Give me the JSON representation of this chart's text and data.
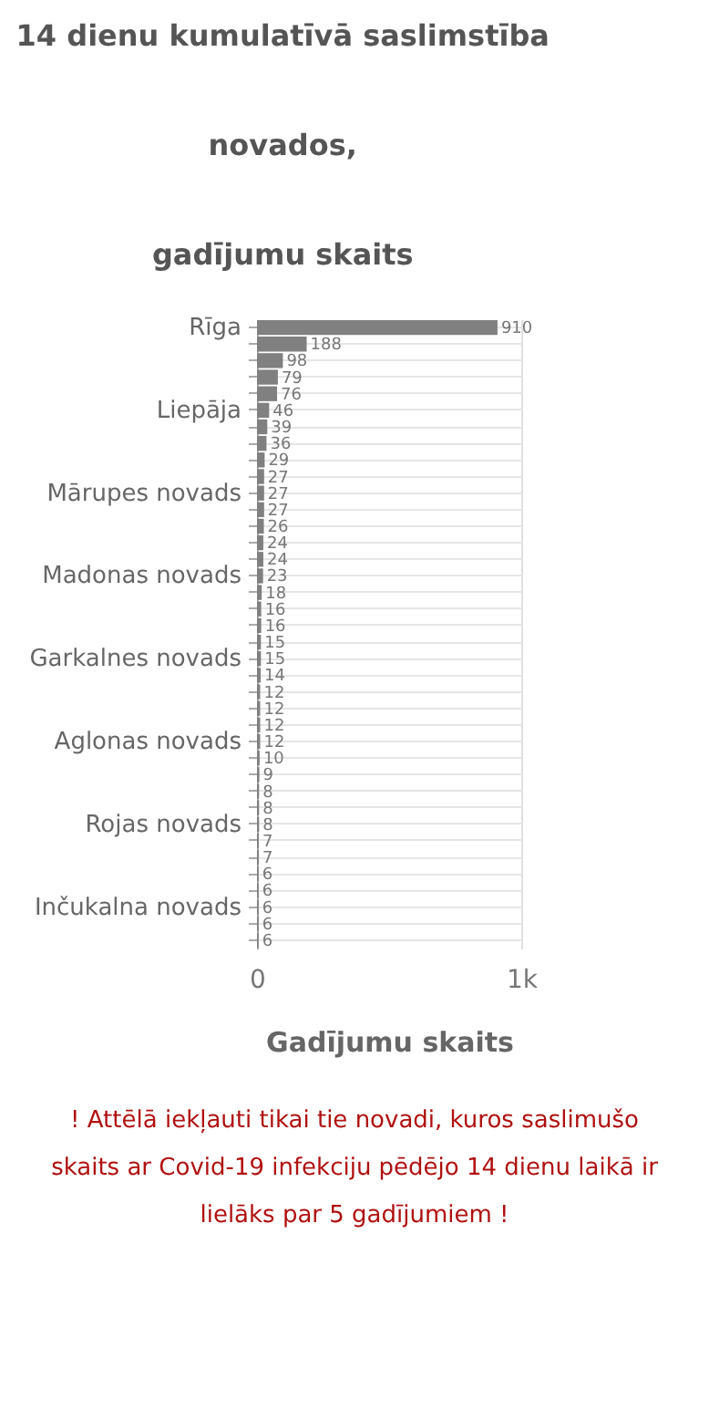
{
  "chart_data": {
    "type": "bar",
    "orientation": "horizontal",
    "title": "14 dienu kumulatīvā saslimstība\nnovados,\ngadījumu skaits",
    "xlabel": "Gadījumu skaits",
    "categories": [
      "Rīga",
      null,
      null,
      null,
      null,
      "Liepāja",
      null,
      null,
      null,
      null,
      "Mārupes novads",
      null,
      null,
      null,
      null,
      "Madonas novads",
      null,
      null,
      null,
      null,
      "Garkalnes novads",
      null,
      null,
      null,
      null,
      "Aglonas novads",
      null,
      null,
      null,
      null,
      "Rojas novads",
      null,
      null,
      null,
      null,
      "Inčukalna novads",
      null,
      null
    ],
    "values": [
      910,
      188,
      98,
      79,
      76,
      46,
      39,
      36,
      29,
      27,
      27,
      27,
      26,
      24,
      24,
      23,
      18,
      16,
      16,
      15,
      15,
      14,
      12,
      12,
      12,
      12,
      10,
      9,
      8,
      8,
      8,
      7,
      7,
      6,
      6,
      6,
      6,
      6
    ],
    "color": "#808080",
    "xlim": [
      0,
      1000
    ],
    "xticks": [
      0,
      {
        "value": 1000,
        "label": "1k"
      }
    ],
    "grid": true,
    "data_labels": true,
    "annotations": [
      "! Attēlā iekļauti tikai tie novadi, kuros saslimušo skaits ar Covid-19 infekciju pēdējo 14 dienu laikā ir lielāks par 5 gadījumiem !"
    ]
  }
}
